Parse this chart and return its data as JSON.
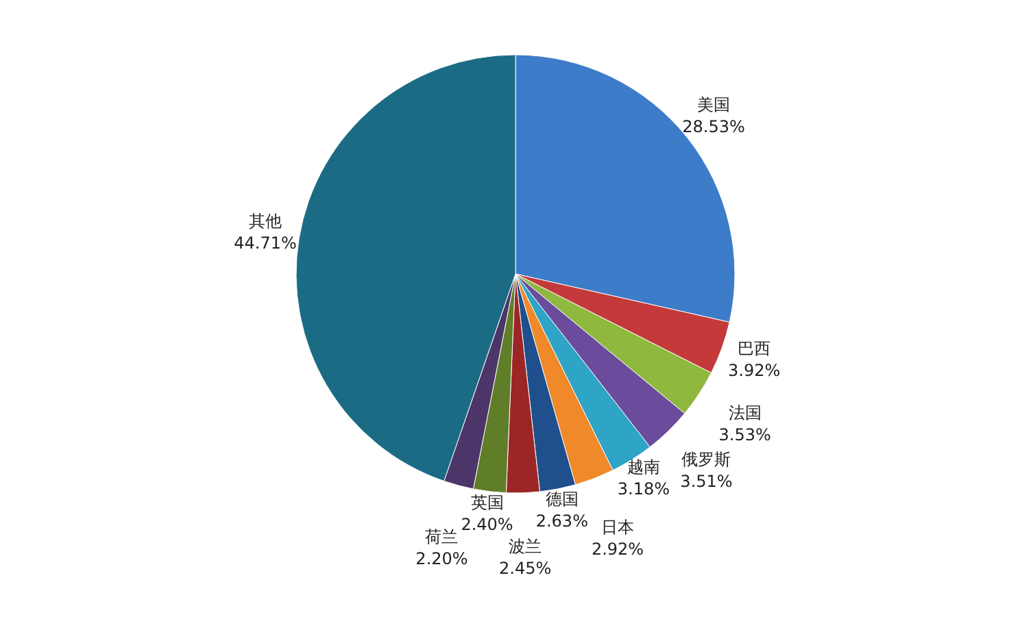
{
  "chart_data": {
    "type": "pie",
    "categories": [
      "美国",
      "巴西",
      "法国",
      "俄罗斯",
      "越南",
      "日本",
      "德国",
      "波兰",
      "英国",
      "荷兰",
      "其他"
    ],
    "values": [
      28.53,
      3.92,
      3.53,
      3.51,
      3.18,
      2.92,
      2.63,
      2.45,
      2.4,
      2.2,
      44.71
    ],
    "value_labels": [
      "28.53%",
      "3.92%",
      "3.53%",
      "3.51%",
      "3.18%",
      "2.92%",
      "2.63%",
      "2.45%",
      "2.40%",
      "2.20%",
      "44.71%"
    ],
    "colors": [
      "#3d7cc9",
      "#c43a3a",
      "#8fb83f",
      "#6b4c9c",
      "#2ea4c6",
      "#f0892a",
      "#1f4f8c",
      "#9c2626",
      "#607d28",
      "#4c3569",
      "#1b6b84"
    ],
    "legend": false
  }
}
